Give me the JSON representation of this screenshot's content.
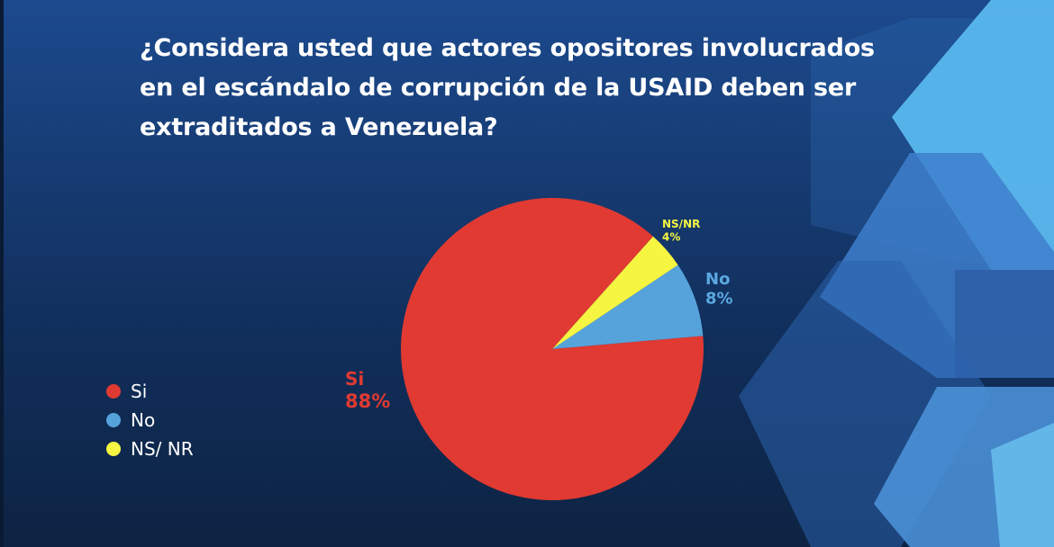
{
  "title": "¿Considera usted que actores opositores involucrados en el escándalo de corrupción de la USAID deben ser extraditados a Venezuela?",
  "colors": {
    "si": "#e03a32",
    "no": "#56a3dc",
    "nsnr": "#f5f542",
    "label_si": "#e03a32",
    "label_no": "#5aa8e0",
    "label_nsnr": "#f5f542"
  },
  "chart_data": {
    "type": "pie",
    "title": "¿Considera usted que actores opositores involucrados en el escándalo de corrupción de la USAID deben ser extraditados a Venezuela?",
    "legend_position": "left",
    "slices": [
      {
        "key": "si",
        "label": "Si",
        "label_text": "Si",
        "value_text": "88%",
        "value": 88
      },
      {
        "key": "no",
        "label": "No",
        "label_text": "No",
        "value_text": "8%",
        "value": 8
      },
      {
        "key": "nsnr",
        "label": "NS/ NR",
        "label_text": "NS/NR",
        "value_text": "4%",
        "value": 4
      }
    ]
  }
}
